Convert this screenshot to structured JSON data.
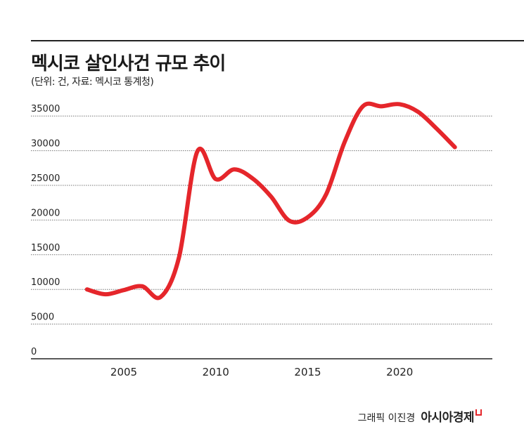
{
  "chart_data": {
    "type": "line",
    "title": "멕시코 살인사건 규모 추이",
    "subtitle": "(단위: 건, 자료: 멕시코 통계청)",
    "x": [
      2003,
      2004,
      2005,
      2006,
      2007,
      2008,
      2009,
      2010,
      2011,
      2012,
      2013,
      2014,
      2015,
      2016,
      2017,
      2018,
      2019,
      2020,
      2021,
      2022,
      2023
    ],
    "series": [
      {
        "values": [
          10000,
          9300,
          9900,
          10450,
          8900,
          14600,
          29900,
          25900,
          27300,
          26000,
          23400,
          19900,
          20400,
          23700,
          31200,
          36400,
          36400,
          36700,
          35600,
          33200,
          30500
        ],
        "color": "#e5262b"
      }
    ],
    "xticks": [
      2005,
      2010,
      2015,
      2020
    ],
    "xtick_labels": [
      "2005",
      "2010",
      "2015",
      "2020"
    ],
    "yticks": [
      0,
      5000,
      10000,
      15000,
      20000,
      25000,
      30000,
      35000
    ],
    "ytick_labels": [
      "0",
      "5000",
      "10000",
      "15000",
      "20000",
      "25000",
      "30000",
      "35000"
    ],
    "xlim": [
      2000.2,
      2024.9
    ],
    "ylim": [
      0,
      37000
    ],
    "grid": "horizontal dotted",
    "legend": "none",
    "xlabel": "",
    "ylabel": ""
  },
  "credit": {
    "author": "그래픽 이진경",
    "brand": "아시아경제"
  }
}
